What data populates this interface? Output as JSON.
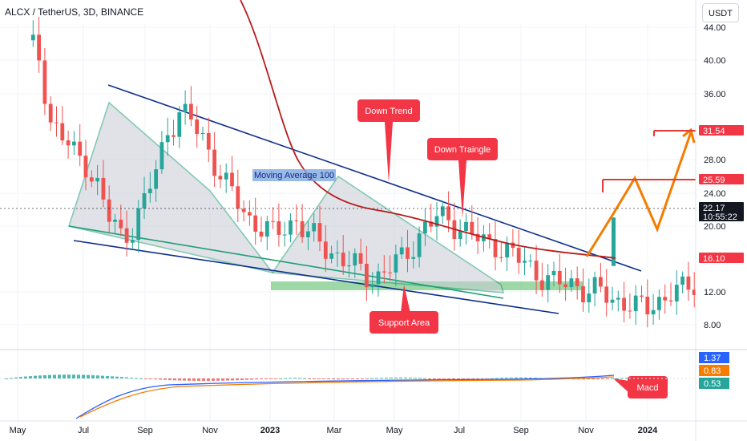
{
  "header": {
    "title": "ALCX / TetherUS, 3D, BINANCE",
    "currency_button": "USDT"
  },
  "chart_data": {
    "type": "candlestick",
    "price_axis": {
      "ticks": [
        "44.00",
        "40.00",
        "36.00",
        "28.00",
        "24.00",
        "20.00",
        "12.00",
        "8.00"
      ],
      "ylim": [
        6,
        46
      ]
    },
    "time_axis": {
      "ticks": [
        "May",
        "Jul",
        "Sep",
        "Nov",
        "2023",
        "Mar",
        "May",
        "Jul",
        "Sep",
        "Nov",
        "2024"
      ]
    },
    "price_labels": [
      {
        "text": "31.54",
        "value": 31.54,
        "color": "#f23645"
      },
      {
        "text": "25.59",
        "value": 25.59,
        "color": "#f23645"
      },
      {
        "text": "22.17",
        "value": 22.17,
        "color": "#131722"
      },
      {
        "text": "10:55:22",
        "value": 21.0,
        "color": "#131722"
      },
      {
        "text": "16.10",
        "value": 16.1,
        "color": "#f23645"
      }
    ],
    "annotations": [
      {
        "text": "Down Trend",
        "kind": "callout"
      },
      {
        "text": "Down Traingle",
        "kind": "callout"
      },
      {
        "text": "Support Area",
        "kind": "callout"
      },
      {
        "text": "Moving Average 100",
        "kind": "label"
      },
      {
        "text": "Macd",
        "kind": "callout"
      }
    ],
    "indicator_labels": [
      {
        "text": "1.37",
        "color": "#2962ff"
      },
      {
        "text": "0.83",
        "color": "#f57c00"
      },
      {
        "text": "0.53",
        "color": "#26a69a"
      }
    ],
    "colors": {
      "up": "#26a69a",
      "down": "#ef5350",
      "ma100": "#b71c1c",
      "trendline": "#0d2f8a",
      "triangle": "#1e9e74",
      "projection": "#f57c00",
      "target": "#e53935",
      "support": "#7ecb8a"
    }
  }
}
